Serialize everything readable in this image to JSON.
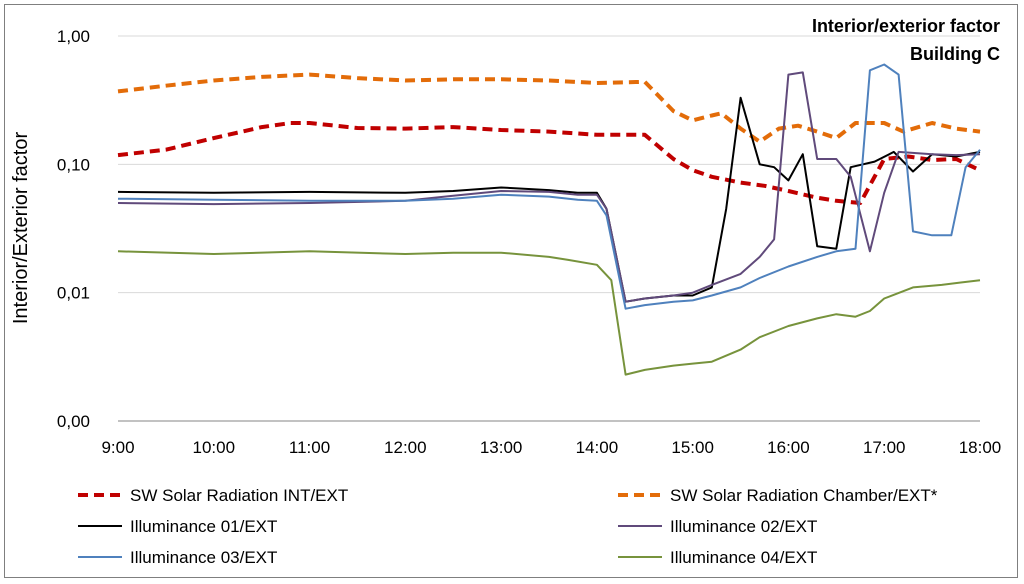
{
  "chart_data": {
    "type": "line",
    "title": "Interior/exterior  factor",
    "subtitle": "Building C",
    "ylabel": "Interior/Exterior factor",
    "xlabel": "",
    "y_scale": "log",
    "ylim": [
      0.001,
      1.0
    ],
    "y_ticks": [
      {
        "value": 1.0,
        "label": "1,00"
      },
      {
        "value": 0.1,
        "label": "0,10"
      },
      {
        "value": 0.01,
        "label": "0,01"
      },
      {
        "value": 0.001,
        "label": "0,00"
      }
    ],
    "xlim": [
      9.0,
      18.0
    ],
    "x_ticks": [
      {
        "value": 9,
        "label": "9:00"
      },
      {
        "value": 10,
        "label": "10:00"
      },
      {
        "value": 11,
        "label": "11:00"
      },
      {
        "value": 12,
        "label": "12:00"
      },
      {
        "value": 13,
        "label": "13:00"
      },
      {
        "value": 14,
        "label": "14:00"
      },
      {
        "value": 15,
        "label": "15:00"
      },
      {
        "value": 16,
        "label": "16:00"
      },
      {
        "value": 17,
        "label": "17:00"
      },
      {
        "value": 18,
        "label": "18:00"
      }
    ],
    "grid": "horizontal",
    "legend_position": "bottom",
    "series": [
      {
        "name": "SW Solar Radiation INT/EXT",
        "color": "#c00000",
        "style": "dashed",
        "width": 4,
        "points": [
          [
            9.0,
            0.118
          ],
          [
            9.5,
            0.13
          ],
          [
            10.0,
            0.16
          ],
          [
            10.5,
            0.195
          ],
          [
            10.8,
            0.21
          ],
          [
            11.0,
            0.21
          ],
          [
            11.5,
            0.192
          ],
          [
            12.0,
            0.19
          ],
          [
            12.5,
            0.195
          ],
          [
            13.0,
            0.185
          ],
          [
            13.5,
            0.18
          ],
          [
            14.0,
            0.17
          ],
          [
            14.5,
            0.17
          ],
          [
            14.8,
            0.11
          ],
          [
            15.0,
            0.09
          ],
          [
            15.2,
            0.08
          ],
          [
            15.5,
            0.072
          ],
          [
            15.75,
            0.068
          ],
          [
            16.0,
            0.062
          ],
          [
            16.3,
            0.055
          ],
          [
            16.5,
            0.052
          ],
          [
            16.75,
            0.05
          ],
          [
            17.0,
            0.11
          ],
          [
            17.25,
            0.115
          ],
          [
            17.5,
            0.108
          ],
          [
            17.75,
            0.11
          ],
          [
            18.0,
            0.09
          ]
        ]
      },
      {
        "name": "SW Solar Radiation Chamber/EXT*",
        "color": "#e36c09",
        "style": "dashed",
        "width": 4,
        "points": [
          [
            9.0,
            0.37
          ],
          [
            9.5,
            0.41
          ],
          [
            10.0,
            0.45
          ],
          [
            10.5,
            0.48
          ],
          [
            11.0,
            0.5
          ],
          [
            11.5,
            0.47
          ],
          [
            12.0,
            0.45
          ],
          [
            12.5,
            0.46
          ],
          [
            13.0,
            0.46
          ],
          [
            13.5,
            0.45
          ],
          [
            14.0,
            0.43
          ],
          [
            14.5,
            0.44
          ],
          [
            14.8,
            0.26
          ],
          [
            15.0,
            0.22
          ],
          [
            15.2,
            0.24
          ],
          [
            15.3,
            0.25
          ],
          [
            15.5,
            0.19
          ],
          [
            15.7,
            0.15
          ],
          [
            15.9,
            0.19
          ],
          [
            16.1,
            0.2
          ],
          [
            16.3,
            0.18
          ],
          [
            16.5,
            0.16
          ],
          [
            16.7,
            0.21
          ],
          [
            17.0,
            0.21
          ],
          [
            17.2,
            0.18
          ],
          [
            17.5,
            0.21
          ],
          [
            17.75,
            0.19
          ],
          [
            18.0,
            0.18
          ]
        ]
      },
      {
        "name": "Illuminance 01/EXT",
        "color": "#000000",
        "style": "solid",
        "width": 2,
        "points": [
          [
            9.0,
            0.061
          ],
          [
            10.0,
            0.06
          ],
          [
            11.0,
            0.061
          ],
          [
            12.0,
            0.06
          ],
          [
            12.5,
            0.062
          ],
          [
            13.0,
            0.066
          ],
          [
            13.5,
            0.063
          ],
          [
            13.8,
            0.06
          ],
          [
            14.0,
            0.06
          ],
          [
            14.1,
            0.045
          ],
          [
            14.3,
            0.0085
          ],
          [
            14.5,
            0.009
          ],
          [
            14.8,
            0.0095
          ],
          [
            15.0,
            0.0095
          ],
          [
            15.2,
            0.011
          ],
          [
            15.35,
            0.045
          ],
          [
            15.5,
            0.33
          ],
          [
            15.7,
            0.1
          ],
          [
            15.85,
            0.095
          ],
          [
            16.0,
            0.075
          ],
          [
            16.15,
            0.12
          ],
          [
            16.3,
            0.023
          ],
          [
            16.5,
            0.022
          ],
          [
            16.65,
            0.095
          ],
          [
            16.9,
            0.105
          ],
          [
            17.1,
            0.125
          ],
          [
            17.3,
            0.088
          ],
          [
            17.5,
            0.12
          ],
          [
            17.75,
            0.115
          ],
          [
            18.0,
            0.125
          ]
        ]
      },
      {
        "name": "Illuminance 02/EXT",
        "color": "#604a7b",
        "style": "solid",
        "width": 2,
        "points": [
          [
            9.0,
            0.05
          ],
          [
            10.0,
            0.049
          ],
          [
            11.0,
            0.05
          ],
          [
            12.0,
            0.052
          ],
          [
            12.5,
            0.057
          ],
          [
            13.0,
            0.062
          ],
          [
            13.5,
            0.061
          ],
          [
            13.8,
            0.058
          ],
          [
            14.0,
            0.058
          ],
          [
            14.1,
            0.045
          ],
          [
            14.3,
            0.0085
          ],
          [
            14.5,
            0.009
          ],
          [
            14.8,
            0.0095
          ],
          [
            15.0,
            0.01
          ],
          [
            15.2,
            0.0115
          ],
          [
            15.5,
            0.014
          ],
          [
            15.7,
            0.019
          ],
          [
            15.85,
            0.026
          ],
          [
            16.0,
            0.5
          ],
          [
            16.15,
            0.52
          ],
          [
            16.3,
            0.11
          ],
          [
            16.5,
            0.11
          ],
          [
            16.65,
            0.08
          ],
          [
            16.85,
            0.021
          ],
          [
            17.0,
            0.06
          ],
          [
            17.15,
            0.125
          ],
          [
            17.5,
            0.12
          ],
          [
            17.75,
            0.118
          ],
          [
            18.0,
            0.12
          ]
        ]
      },
      {
        "name": "Illuminance 03/EXT",
        "color": "#4f81bd",
        "style": "solid",
        "width": 2,
        "points": [
          [
            9.0,
            0.054
          ],
          [
            10.0,
            0.053
          ],
          [
            11.0,
            0.052
          ],
          [
            12.0,
            0.052
          ],
          [
            12.5,
            0.054
          ],
          [
            13.0,
            0.058
          ],
          [
            13.5,
            0.056
          ],
          [
            13.8,
            0.053
          ],
          [
            14.0,
            0.052
          ],
          [
            14.1,
            0.04
          ],
          [
            14.3,
            0.0075
          ],
          [
            14.5,
            0.008
          ],
          [
            14.8,
            0.0085
          ],
          [
            15.0,
            0.0087
          ],
          [
            15.2,
            0.0095
          ],
          [
            15.5,
            0.011
          ],
          [
            15.7,
            0.013
          ],
          [
            16.0,
            0.016
          ],
          [
            16.3,
            0.019
          ],
          [
            16.5,
            0.021
          ],
          [
            16.7,
            0.022
          ],
          [
            16.85,
            0.54
          ],
          [
            17.0,
            0.6
          ],
          [
            17.15,
            0.5
          ],
          [
            17.3,
            0.03
          ],
          [
            17.5,
            0.028
          ],
          [
            17.7,
            0.028
          ],
          [
            17.85,
            0.095
          ],
          [
            18.0,
            0.13
          ]
        ]
      },
      {
        "name": "Illuminance 04/EXT",
        "color": "#77933c",
        "style": "solid",
        "width": 2,
        "points": [
          [
            9.0,
            0.021
          ],
          [
            10.0,
            0.02
          ],
          [
            11.0,
            0.021
          ],
          [
            12.0,
            0.02
          ],
          [
            12.5,
            0.0205
          ],
          [
            13.0,
            0.0205
          ],
          [
            13.5,
            0.019
          ],
          [
            13.7,
            0.018
          ],
          [
            14.0,
            0.0165
          ],
          [
            14.15,
            0.0125
          ],
          [
            14.3,
            0.0023
          ],
          [
            14.5,
            0.0025
          ],
          [
            14.8,
            0.0027
          ],
          [
            15.0,
            0.0028
          ],
          [
            15.2,
            0.0029
          ],
          [
            15.5,
            0.0036
          ],
          [
            15.7,
            0.0045
          ],
          [
            16.0,
            0.0055
          ],
          [
            16.3,
            0.0063
          ],
          [
            16.5,
            0.0068
          ],
          [
            16.7,
            0.0065
          ],
          [
            16.85,
            0.0072
          ],
          [
            17.0,
            0.009
          ],
          [
            17.3,
            0.011
          ],
          [
            17.6,
            0.0115
          ],
          [
            17.8,
            0.012
          ],
          [
            18.0,
            0.0125
          ]
        ]
      }
    ]
  }
}
